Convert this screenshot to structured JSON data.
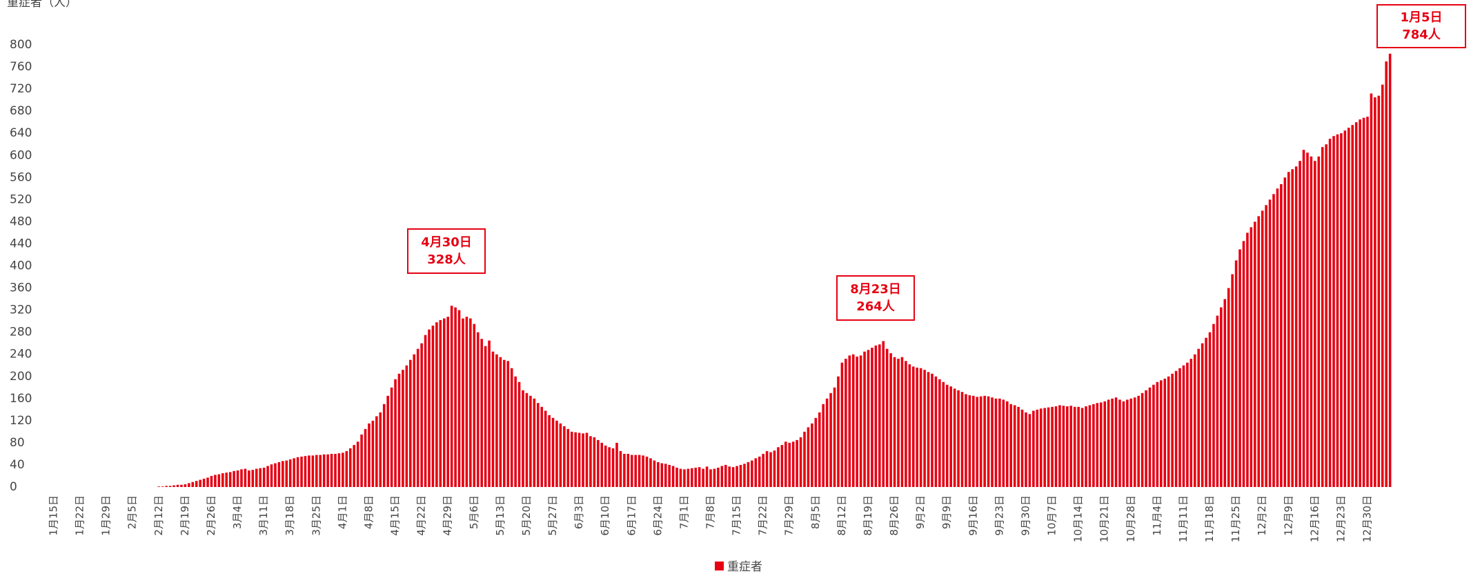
{
  "chart_data": {
    "type": "bar",
    "y_label": "重症者（人）",
    "categories": [
      "1月15日",
      null,
      null,
      null,
      null,
      null,
      null,
      "1月22日",
      null,
      null,
      null,
      null,
      null,
      null,
      "1月29日",
      null,
      null,
      null,
      null,
      null,
      null,
      "2月5日",
      null,
      null,
      null,
      null,
      null,
      null,
      "2月12日",
      null,
      null,
      null,
      null,
      null,
      null,
      "2月19日",
      null,
      null,
      null,
      null,
      null,
      null,
      "2月26日",
      null,
      null,
      null,
      null,
      null,
      null,
      "3月4日",
      null,
      null,
      null,
      null,
      null,
      null,
      "3月11日",
      null,
      null,
      null,
      null,
      null,
      null,
      "3月18日",
      null,
      null,
      null,
      null,
      null,
      null,
      "3月25日",
      null,
      null,
      null,
      null,
      null,
      null,
      "4月1日",
      null,
      null,
      null,
      null,
      null,
      null,
      "4月8日",
      null,
      null,
      null,
      null,
      null,
      null,
      "4月15日",
      null,
      null,
      null,
      null,
      null,
      null,
      "4月22日",
      null,
      null,
      null,
      null,
      null,
      null,
      "4月29日",
      null,
      null,
      null,
      null,
      null,
      null,
      "5月6日",
      null,
      null,
      null,
      null,
      null,
      null,
      "5月13日",
      null,
      null,
      null,
      null,
      null,
      null,
      "5月20日",
      null,
      null,
      null,
      null,
      null,
      null,
      "5月27日",
      null,
      null,
      null,
      null,
      null,
      null,
      "6月3日",
      null,
      null,
      null,
      null,
      null,
      null,
      "6月10日",
      null,
      null,
      null,
      null,
      null,
      null,
      "6月17日",
      null,
      null,
      null,
      null,
      null,
      null,
      "6月24日",
      null,
      null,
      null,
      null,
      null,
      null,
      "7月1日",
      null,
      null,
      null,
      null,
      null,
      null,
      "7月8日",
      null,
      null,
      null,
      null,
      null,
      null,
      "7月15日",
      null,
      null,
      null,
      null,
      null,
      null,
      "7月22日",
      null,
      null,
      null,
      null,
      null,
      null,
      "7月29日",
      null,
      null,
      null,
      null,
      null,
      null,
      "8月5日",
      null,
      null,
      null,
      null,
      null,
      null,
      "8月12日",
      null,
      null,
      null,
      null,
      null,
      null,
      "8月19日",
      null,
      null,
      null,
      null,
      null,
      null,
      "8月26日",
      null,
      null,
      null,
      null,
      null,
      null,
      "9月2日",
      null,
      null,
      null,
      null,
      null,
      null,
      "9月9日",
      null,
      null,
      null,
      null,
      null,
      null,
      "9月16日",
      null,
      null,
      null,
      null,
      null,
      null,
      "9月23日",
      null,
      null,
      null,
      null,
      null,
      null,
      "9月30日",
      null,
      null,
      null,
      null,
      null,
      null,
      "10月7日",
      null,
      null,
      null,
      null,
      null,
      null,
      "10月14日",
      null,
      null,
      null,
      null,
      null,
      null,
      "10月21日",
      null,
      null,
      null,
      null,
      null,
      null,
      "10月28日",
      null,
      null,
      null,
      null,
      null,
      null,
      "11月4日",
      null,
      null,
      null,
      null,
      null,
      null,
      "11月11日",
      null,
      null,
      null,
      null,
      null,
      null,
      "11月18日",
      null,
      null,
      null,
      null,
      null,
      null,
      "11月25日",
      null,
      null,
      null,
      null,
      null,
      null,
      "12月2日",
      null,
      null,
      null,
      null,
      null,
      null,
      "12月9日",
      null,
      null,
      null,
      null,
      null,
      null,
      "12月16日",
      null,
      null,
      null,
      null,
      null,
      null,
      "12月23日",
      null,
      null,
      null,
      null,
      null,
      null,
      "12月30日",
      null,
      null,
      null,
      null,
      null,
      null
    ],
    "series": [
      {
        "name": "重症者",
        "color": "#e60012",
        "values": [
          0,
          0,
          0,
          0,
          0,
          0,
          0,
          0,
          0,
          0,
          0,
          0,
          0,
          0,
          0,
          0,
          0,
          0,
          0,
          0,
          0,
          0,
          0,
          0,
          0,
          0,
          0,
          0,
          1,
          1,
          2,
          2,
          3,
          4,
          4,
          5,
          7,
          9,
          11,
          13,
          15,
          17,
          20,
          22,
          23,
          25,
          26,
          27,
          29,
          30,
          32,
          33,
          30,
          31,
          33,
          34,
          35,
          38,
          41,
          43,
          45,
          47,
          48,
          50,
          52,
          54,
          55,
          56,
          57,
          57,
          58,
          58,
          59,
          59,
          60,
          60,
          61,
          62,
          65,
          70,
          76,
          82,
          95,
          105,
          115,
          120,
          128,
          135,
          150,
          165,
          180,
          195,
          205,
          212,
          220,
          230,
          240,
          250,
          260,
          275,
          285,
          292,
          298,
          302,
          305,
          308,
          328,
          325,
          320,
          305,
          308,
          305,
          295,
          280,
          268,
          255,
          265,
          245,
          240,
          235,
          230,
          228,
          215,
          200,
          190,
          175,
          170,
          165,
          160,
          152,
          145,
          138,
          130,
          125,
          120,
          115,
          110,
          105,
          100,
          99,
          98,
          97,
          98,
          92,
          90,
          85,
          80,
          75,
          72,
          70,
          80,
          65,
          60,
          60,
          58,
          58,
          58,
          57,
          55,
          52,
          48,
          45,
          43,
          42,
          40,
          38,
          35,
          33,
          32,
          33,
          34,
          35,
          36,
          33,
          37,
          32,
          33,
          35,
          38,
          40,
          37,
          36,
          38,
          40,
          42,
          45,
          48,
          52,
          55,
          60,
          65,
          63,
          66,
          72,
          76,
          82,
          80,
          82,
          85,
          90,
          100,
          108,
          115,
          125,
          135,
          150,
          160,
          170,
          180,
          200,
          225,
          232,
          238,
          240,
          236,
          238,
          245,
          248,
          252,
          256,
          258,
          264,
          250,
          242,
          235,
          232,
          235,
          228,
          222,
          218,
          216,
          215,
          212,
          208,
          205,
          200,
          195,
          190,
          185,
          182,
          178,
          175,
          172,
          168,
          166,
          165,
          163,
          164,
          165,
          164,
          162,
          160,
          160,
          158,
          155,
          150,
          148,
          145,
          140,
          135,
          132,
          138,
          140,
          142,
          143,
          144,
          145,
          146,
          148,
          147,
          146,
          147,
          145,
          145,
          143,
          146,
          148,
          150,
          152,
          153,
          155,
          158,
          160,
          162,
          158,
          155,
          158,
          160,
          162,
          165,
          170,
          175,
          180,
          185,
          190,
          193,
          196,
          200,
          205,
          210,
          215,
          220,
          225,
          232,
          240,
          250,
          260,
          270,
          280,
          295,
          310,
          325,
          340,
          360,
          385,
          410,
          430,
          445,
          460,
          470,
          480,
          490,
          500,
          510,
          520,
          530,
          540,
          548,
          560,
          570,
          575,
          580,
          590,
          610,
          605,
          598,
          590,
          598,
          615,
          620,
          630,
          635,
          638,
          640,
          645,
          650,
          655,
          660,
          665,
          668,
          670,
          712,
          705,
          708,
          728,
          770,
          784
        ]
      }
    ],
    "ylim": [
      0,
      800
    ],
    "yticks": [
      0,
      40,
      80,
      120,
      160,
      200,
      240,
      280,
      320,
      360,
      400,
      440,
      480,
      520,
      560,
      600,
      640,
      680,
      720,
      760,
      800
    ],
    "grid": false,
    "legend": "bottom",
    "annotations": [
      {
        "lines": [
          "4月30日",
          "328人"
        ]
      },
      {
        "lines": [
          "8月23日",
          "264人"
        ]
      },
      {
        "lines": [
          "1月5日",
          "784人"
        ]
      }
    ]
  }
}
